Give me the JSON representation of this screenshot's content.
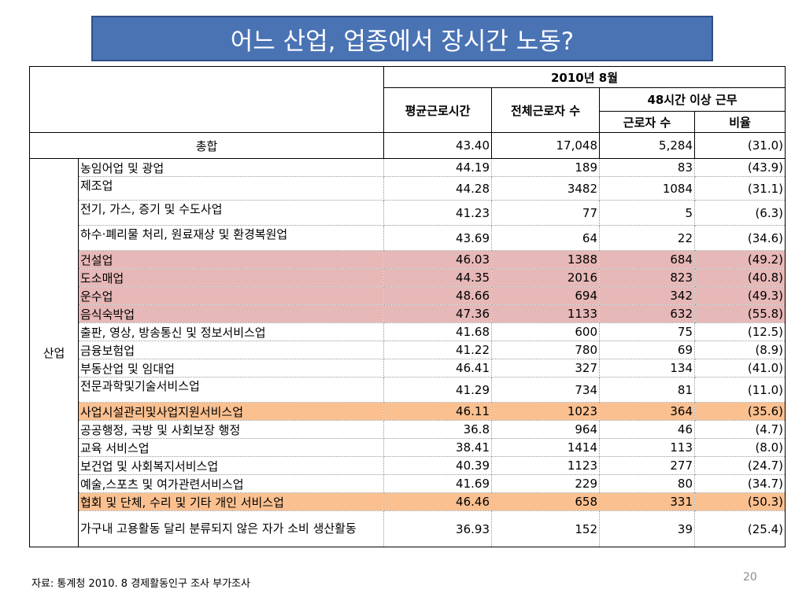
{
  "title": "어느 산업, 업종에서 장시간 노동?",
  "header": {
    "period": "2010년 8월",
    "avg_hours": "평균근로시간",
    "total_workers": "전체근로자 수",
    "over48": "48시간 이상 근무",
    "workers": "근로자 수",
    "ratio": "비율"
  },
  "total": {
    "label": "총합",
    "avg": "43.40",
    "workers": "17,048",
    "over48": "5,284",
    "ratio": "(31.0)"
  },
  "category_label": "산업",
  "rows": [
    {
      "name": "농임어업 및 광업",
      "avg": "44.19",
      "workers": "189",
      "over48": "83",
      "ratio": "(43.9)"
    },
    {
      "name": "제조업",
      "avg": "44.28",
      "workers": "3482",
      "over48": "1084",
      "ratio": "(31.1)"
    },
    {
      "name": "전기, 가스, 증기 및 수도사업",
      "avg": "41.23",
      "workers": "77",
      "over48": "5",
      "ratio": "(6.3)"
    },
    {
      "name": "하수·폐리물 처리, 원료재상 및 환경복원업",
      "avg": "43.69",
      "workers": "64",
      "over48": "22",
      "ratio": "(34.6)"
    },
    {
      "name": "건설업",
      "avg": "46.03",
      "workers": "1388",
      "over48": "684",
      "ratio": "(49.2)"
    },
    {
      "name": "도소매업",
      "avg": "44.35",
      "workers": "2016",
      "over48": "823",
      "ratio": "(40.8)"
    },
    {
      "name": "운수업",
      "avg": "48.66",
      "workers": "694",
      "over48": "342",
      "ratio": "(49.3)"
    },
    {
      "name": "음식숙박업",
      "avg": "47.36",
      "workers": "1133",
      "over48": "632",
      "ratio": "(55.8)"
    },
    {
      "name": "출판, 영상, 방송통신 및 정보서비스업",
      "avg": "41.68",
      "workers": "600",
      "over48": "75",
      "ratio": "(12.5)"
    },
    {
      "name": "금융보험업",
      "avg": "41.22",
      "workers": "780",
      "over48": "69",
      "ratio": "(8.9)"
    },
    {
      "name": "부동산업 및 임대업",
      "avg": "46.41",
      "workers": "327",
      "over48": "134",
      "ratio": "(41.0)"
    },
    {
      "name": "전문과학및기술서비스업",
      "avg": "41.29",
      "workers": "734",
      "over48": "81",
      "ratio": "(11.0)"
    },
    {
      "name": "사업시설관리및사업지원서비스업",
      "avg": "46.11",
      "workers": "1023",
      "over48": "364",
      "ratio": "(35.6)"
    },
    {
      "name": "공공행정, 국방 및 사회보장 행정",
      "avg": "36.8",
      "workers": "964",
      "over48": "46",
      "ratio": "(4.7)"
    },
    {
      "name": "교육 서비스업",
      "avg": "38.41",
      "workers": "1414",
      "over48": "113",
      "ratio": "(8.0)"
    },
    {
      "name": "보건업 및 사회복지서비스업",
      "avg": "40.39",
      "workers": "1123",
      "over48": "277",
      "ratio": "(24.7)"
    },
    {
      "name": "예술,스포츠 및 여가관련서비스업",
      "avg": "41.69",
      "workers": "229",
      "over48": "80",
      "ratio": "(34.7)"
    },
    {
      "name": "협회 및 단체, 수리 및 기타 개인 서비스업",
      "avg": "46.46",
      "workers": "658",
      "over48": "331",
      "ratio": "(50.3)"
    },
    {
      "name": "가구내 고용활동 달리 분류되지 않은 자가 소비 생산활동",
      "avg": "36.93",
      "workers": "152",
      "over48": "39",
      "ratio": "(25.4)"
    }
  ],
  "highlight_colors": {
    "pink": "#e6b8b7",
    "orange": "#fac090"
  },
  "source": "자료: 통계청 2010. 8 경제활동인구 조사 부가조사",
  "page_number": "20"
}
